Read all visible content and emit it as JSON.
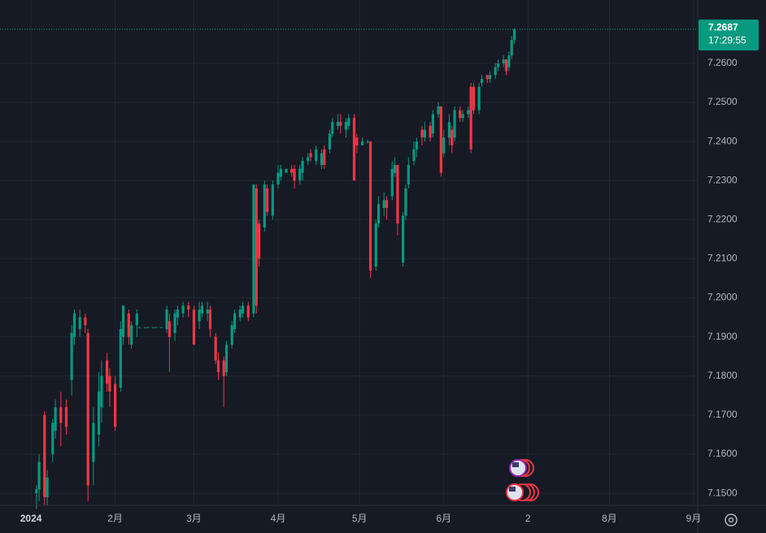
{
  "chart_data": {
    "type": "candlestick",
    "up_color": "#089981",
    "down_color": "#f23645",
    "grid": true,
    "x": [
      2,
      3,
      5,
      6,
      8,
      9,
      11,
      13,
      15,
      16,
      18,
      20,
      21,
      23,
      25,
      26,
      28,
      29,
      31,
      33,
      34,
      36,
      37,
      39,
      40,
      42,
      43,
      45,
      46,
      48,
      50,
      51,
      53,
      54,
      56,
      58,
      60,
      62,
      63,
      65,
      66,
      68,
      69,
      71,
      72,
      74,
      75,
      77,
      78,
      80,
      82,
      83,
      84,
      86,
      87,
      89,
      91,
      92,
      94,
      96,
      97,
      99,
      100,
      102,
      103,
      105,
      107,
      108,
      110,
      111,
      113,
      114,
      116,
      117,
      119,
      120,
      122,
      124,
      125,
      127,
      128,
      130,
      131,
      133,
      134,
      135,
      137,
      138,
      139,
      141,
      142,
      144,
      145,
      147,
      148,
      150,
      151,
      152,
      154,
      155,
      156,
      158,
      159,
      161,
      162,
      163,
      165,
      166,
      168,
      169,
      171,
      172,
      174,
      175,
      176,
      177,
      178
    ],
    "open": [
      7.15,
      7.151,
      7.17,
      7.149,
      7.16,
      7.166,
      7.172,
      7.172,
      7.179,
      7.19,
      7.192,
      7.195,
      7.191,
      7.158,
      7.165,
      7.172,
      7.184,
      7.18,
      7.178,
      7.177,
      7.19,
      7.196,
      7.188,
      7.193,
      7.1925,
      7.1925,
      7.1925,
      7.1925,
      7.1925,
      7.1925,
      7.192,
      7.194,
      7.191,
      7.195,
      7.196,
      7.198,
      7.197,
      7.194,
      7.196,
      7.196,
      7.197,
      7.19,
      7.184,
      7.184,
      7.181,
      7.188,
      7.192,
      7.195,
      7.196,
      7.198,
      7.196,
      7.228,
      7.219,
      7.218,
      7.228,
      7.221,
      7.229,
      7.231,
      7.232,
      7.233,
      7.233,
      7.23,
      7.232,
      7.235,
      7.237,
      7.235,
      7.234,
      7.238,
      7.238,
      7.242,
      7.244,
      7.245,
      7.243,
      7.244,
      7.246,
      7.241,
      7.239,
      7.24,
      7.24,
      7.208,
      7.219,
      7.223,
      7.225,
      7.226,
      7.232,
      7.234,
      7.209,
      7.221,
      7.229,
      7.235,
      7.238,
      7.243,
      7.241,
      7.244,
      7.242,
      7.247,
      7.249,
      7.237,
      7.241,
      7.243,
      7.241,
      7.248,
      7.246,
      7.247,
      7.254,
      7.254,
      7.248,
      7.255,
      7.257,
      7.256,
      7.257,
      7.259,
      7.26,
      7.261,
      7.259,
      7.262,
      7.266
    ],
    "high": [
      7.152,
      7.16,
      7.171,
      7.156,
      7.169,
      7.174,
      7.176,
      7.174,
      7.193,
      7.197,
      7.197,
      7.196,
      7.192,
      7.172,
      7.181,
      7.184,
      7.186,
      7.182,
      7.18,
      7.194,
      7.198,
      7.197,
      7.194,
      7.197,
      7.1925,
      7.1925,
      7.1925,
      7.1925,
      7.1925,
      7.1925,
      7.198,
      7.196,
      7.197,
      7.198,
      7.199,
      7.199,
      7.198,
      7.199,
      7.199,
      7.199,
      7.198,
      7.191,
      7.186,
      7.185,
      7.189,
      7.194,
      7.197,
      7.198,
      7.199,
      7.199,
      7.229,
      7.229,
      7.22,
      7.23,
      7.229,
      7.23,
      7.234,
      7.234,
      7.233,
      7.234,
      7.234,
      7.234,
      7.236,
      7.237,
      7.238,
      7.239,
      7.238,
      7.239,
      7.243,
      7.246,
      7.247,
      7.247,
      7.246,
      7.247,
      7.247,
      7.242,
      7.241,
      7.2405,
      7.24,
      7.22,
      7.226,
      7.227,
      7.226,
      7.235,
      7.236,
      7.234,
      7.222,
      7.229,
      7.236,
      7.24,
      7.241,
      7.244,
      7.245,
      7.245,
      7.248,
      7.25,
      7.249,
      7.243,
      7.247,
      7.244,
      7.249,
      7.249,
      7.248,
      7.249,
      7.255,
      7.255,
      7.255,
      7.257,
      7.257,
      7.258,
      7.26,
      7.261,
      7.262,
      7.261,
      7.263,
      7.267,
      7.269
    ],
    "low": [
      7.146,
      7.148,
      7.147,
      7.147,
      7.158,
      7.164,
      7.162,
      7.165,
      7.175,
      7.188,
      7.19,
      7.191,
      7.148,
      7.152,
      7.162,
      7.168,
      7.176,
      7.172,
      7.166,
      7.176,
      7.188,
      7.188,
      7.187,
      7.19,
      7.1925,
      7.1925,
      7.1925,
      7.1925,
      7.1925,
      7.1925,
      7.191,
      7.181,
      7.189,
      7.193,
      7.195,
      7.195,
      7.188,
      7.192,
      7.195,
      7.194,
      7.19,
      7.183,
      7.179,
      7.172,
      7.18,
      7.187,
      7.191,
      7.194,
      7.195,
      7.194,
      7.195,
      7.196,
      7.208,
      7.217,
      7.221,
      7.22,
      7.228,
      7.23,
      7.232,
      7.231,
      7.228,
      7.229,
      7.23,
      7.234,
      7.235,
      7.234,
      7.233,
      7.233,
      7.237,
      7.241,
      7.243,
      7.242,
      7.241,
      7.243,
      7.23,
      7.237,
      7.239,
      7.2395,
      7.205,
      7.207,
      7.218,
      7.221,
      7.22,
      7.225,
      7.231,
      7.216,
      7.208,
      7.22,
      7.228,
      7.234,
      7.236,
      7.239,
      7.24,
      7.24,
      7.241,
      7.246,
      7.231,
      7.236,
      7.239,
      7.237,
      7.24,
      7.245,
      7.245,
      7.246,
      7.237,
      7.247,
      7.247,
      7.254,
      7.255,
      7.255,
      7.256,
      7.258,
      7.259,
      7.257,
      7.258,
      7.261,
      7.265
    ],
    "close": [
      7.151,
      7.158,
      7.149,
      7.154,
      7.168,
      7.172,
      7.168,
      7.167,
      7.191,
      7.196,
      7.195,
      7.193,
      7.152,
      7.168,
      7.176,
      7.18,
      7.178,
      7.176,
      7.167,
      7.192,
      7.198,
      7.19,
      7.193,
      7.196,
      7.1925,
      7.1925,
      7.1925,
      7.1925,
      7.1925,
      7.1925,
      7.197,
      7.19,
      7.196,
      7.197,
      7.198,
      7.197,
      7.188,
      7.197,
      7.198,
      7.197,
      7.192,
      7.184,
      7.181,
      7.18,
      7.188,
      7.193,
      7.196,
      7.197,
      7.198,
      7.195,
      7.229,
      7.198,
      7.21,
      7.229,
      7.222,
      7.229,
      7.232,
      7.233,
      7.233,
      7.232,
      7.23,
      7.233,
      7.235,
      7.236,
      7.236,
      7.238,
      7.237,
      7.234,
      7.242,
      7.245,
      7.245,
      7.244,
      7.245,
      7.246,
      7.23,
      7.239,
      7.24,
      7.24,
      7.207,
      7.219,
      7.224,
      7.225,
      7.223,
      7.233,
      7.234,
      7.219,
      7.221,
      7.228,
      7.234,
      7.238,
      7.24,
      7.241,
      7.243,
      7.241,
      7.247,
      7.249,
      7.232,
      7.241,
      7.245,
      7.239,
      7.248,
      7.246,
      7.247,
      7.248,
      7.238,
      7.248,
      7.254,
      7.256,
      7.256,
      7.257,
      7.259,
      7.26,
      7.261,
      7.258,
      7.262,
      7.266,
      7.2687
    ],
    "xlim": [
      -11.4,
      245.5
    ],
    "xticks": [
      {
        "value": 0,
        "label": "2024"
      },
      {
        "value": 31,
        "label": "2月"
      },
      {
        "value": 60,
        "label": "3月"
      },
      {
        "value": 91,
        "label": "4月"
      },
      {
        "value": 121,
        "label": "5月"
      },
      {
        "value": 152,
        "label": "6月"
      },
      {
        "value": 183,
        "label": "2"
      },
      {
        "value": 213,
        "label": "8月"
      },
      {
        "value": 244,
        "label": "9月"
      }
    ],
    "ylim": [
      7.1469,
      7.2762
    ],
    "yticks": [
      {
        "value": 7.15,
        "label": "7.1500"
      },
      {
        "value": 7.16,
        "label": "7.1600"
      },
      {
        "value": 7.17,
        "label": "7.1700"
      },
      {
        "value": 7.18,
        "label": "7.1800"
      },
      {
        "value": 7.19,
        "label": "7.1900"
      },
      {
        "value": 7.2,
        "label": "7.2000"
      },
      {
        "value": 7.21,
        "label": "7.2100"
      },
      {
        "value": 7.22,
        "label": "7.2200"
      },
      {
        "value": 7.23,
        "label": "7.2300"
      },
      {
        "value": 7.24,
        "label": "7.2400"
      },
      {
        "value": 7.25,
        "label": "7.2500"
      },
      {
        "value": 7.26,
        "label": "7.2600"
      }
    ],
    "last_price": 7.2687,
    "countdown": "17:29:55"
  }
}
